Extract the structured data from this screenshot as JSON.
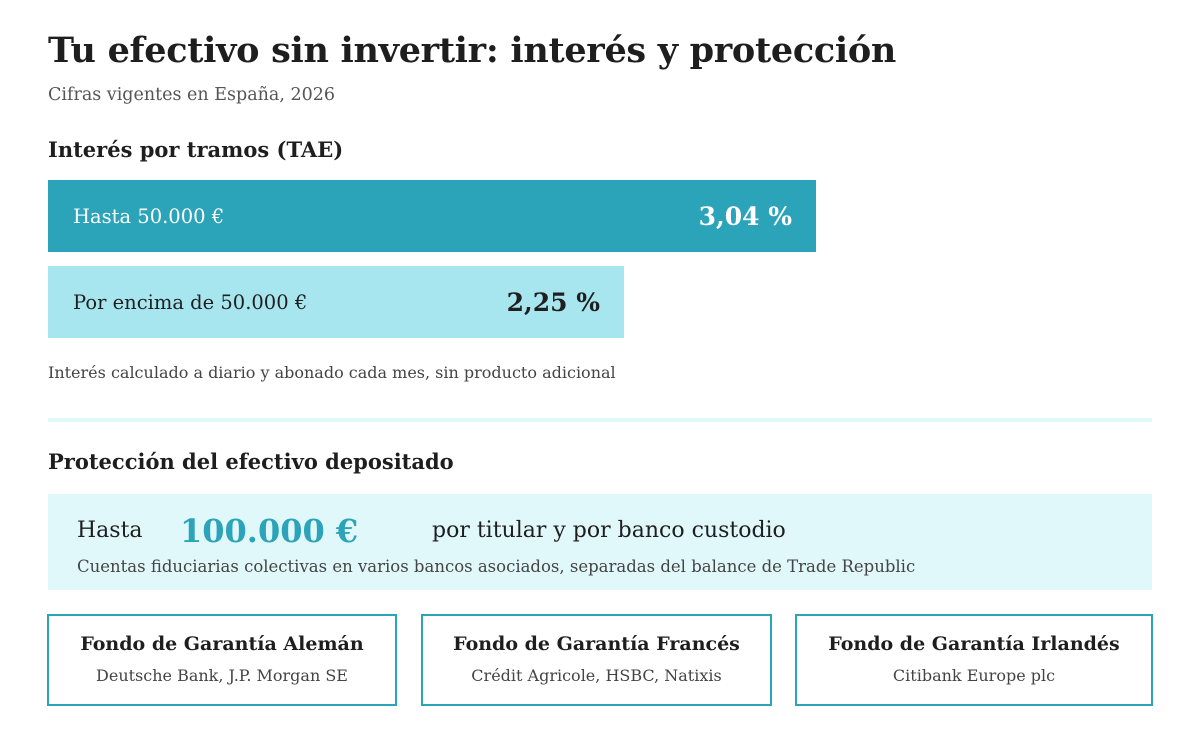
{
  "header": {
    "title": "Tu efectivo sin invertir: interés y protección",
    "subtitle": "Cifras vigentes en España, 2026"
  },
  "interest": {
    "heading": "Interés por tramos (TAE)",
    "tiers": [
      {
        "label": "Hasta 50.000 €",
        "rate": "3,04 %",
        "rate_value": 3.04,
        "color": "#2ba3b8"
      },
      {
        "label": "Por encima de 50.000 €",
        "rate": "2,25 %",
        "rate_value": 2.25,
        "color": "#a8e6ef"
      }
    ],
    "note": "Interés calculado a diario y abonado cada mes, sin producto adicional"
  },
  "protection": {
    "heading": "Protección del efectivo depositado",
    "prefix": "Hasta",
    "amount": "100.000 €",
    "suffix": "por titular y por banco custodio",
    "note": "Cuentas fiduciarias colectivas en varios bancos asociados, separadas del balance de Trade Republic",
    "funds": [
      {
        "name": "Fondo de Garantía Alemán",
        "banks": "Deutsche Bank, J.P. Morgan SE"
      },
      {
        "name": "Fondo de Garantía Francés",
        "banks": "Crédit Agricole, HSBC, Natixis"
      },
      {
        "name": "Fondo de Garantía Irlandés",
        "banks": "Citibank Europe plc"
      }
    ]
  },
  "colors": {
    "accent": "#2ba3b8",
    "accent_light": "#a8e6ef",
    "panel_background": "#e1f8fb"
  }
}
